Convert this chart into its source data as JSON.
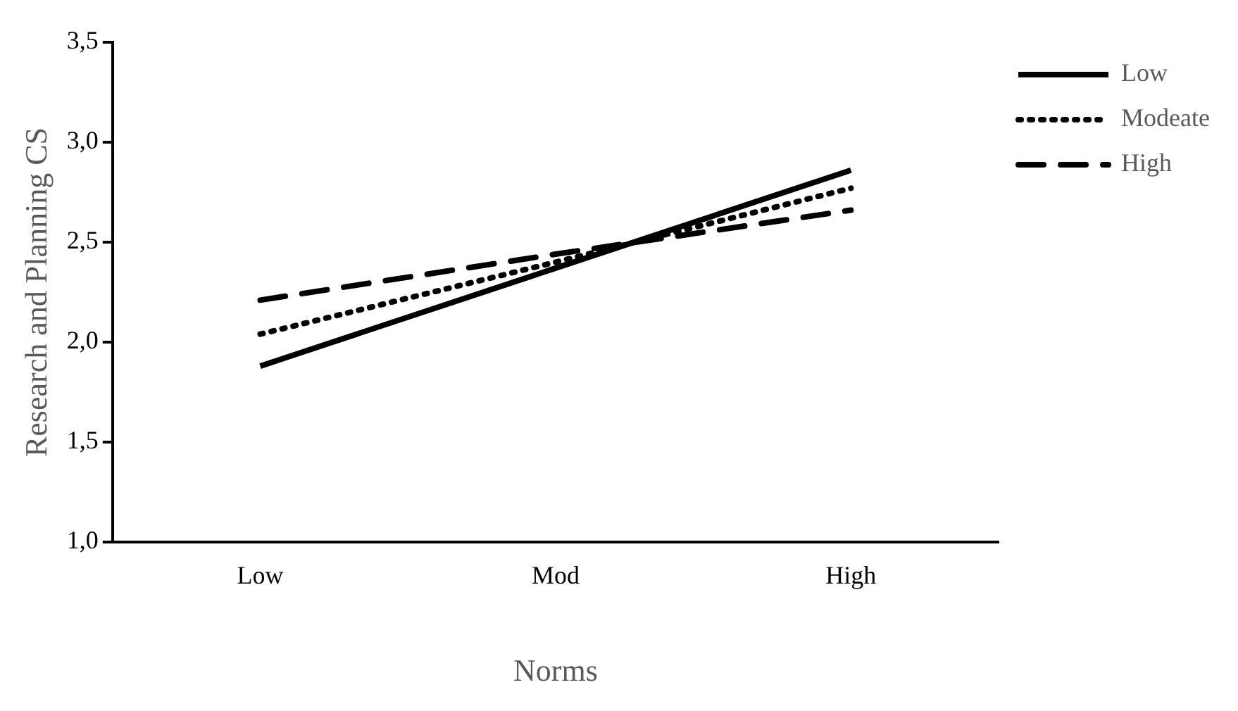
{
  "chart_data": {
    "type": "line",
    "xlabel": "Norms",
    "ylabel": "Research and Planning CS",
    "categories": [
      "Low",
      "Mod",
      "High"
    ],
    "series": [
      {
        "name": "Low",
        "color": "#000000",
        "line_style": "solid",
        "values": [
          1.88,
          2.37,
          2.86
        ]
      },
      {
        "name": "Modeate",
        "color": "#000000",
        "line_style": "dotted",
        "values": [
          2.04,
          2.4,
          2.77
        ]
      },
      {
        "name": "High",
        "color": "#000000",
        "line_style": "dashed",
        "values": [
          2.21,
          2.44,
          2.66
        ]
      }
    ],
    "ylim": [
      1.0,
      3.5
    ],
    "yticks": [
      {
        "value": 1.0,
        "label": "1,0"
      },
      {
        "value": 1.5,
        "label": "1,5"
      },
      {
        "value": 2.0,
        "label": "2,0"
      },
      {
        "value": 2.5,
        "label": "2,5"
      },
      {
        "value": 3.0,
        "label": "3,0"
      },
      {
        "value": 3.5,
        "label": "3,5"
      }
    ],
    "grid": false,
    "legend": "right",
    "marker": "none"
  }
}
